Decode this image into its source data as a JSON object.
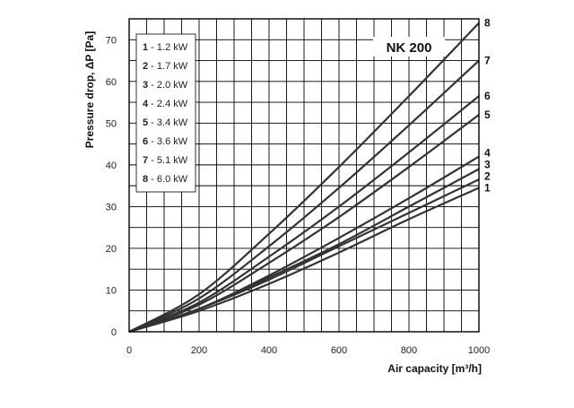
{
  "chart_data": {
    "type": "line",
    "model": "NK 200",
    "xlabel": "Air capacity [m³/h]",
    "ylabel": "Pressure drop, ΔP [Pa]",
    "xlim": [
      0,
      1000
    ],
    "ylim": [
      0,
      75
    ],
    "x_ticks": [
      0,
      200,
      400,
      600,
      800,
      1000
    ],
    "y_ticks": [
      0,
      10,
      20,
      30,
      40,
      50,
      60,
      70
    ],
    "grid": true,
    "legend_position": "top-left",
    "legend": [
      {
        "num": "1",
        "text": " - 1.2 kW"
      },
      {
        "num": "2",
        "text": " - 1.7 kW"
      },
      {
        "num": "3",
        "text": " - 2.0 kW"
      },
      {
        "num": "4",
        "text": " - 2.4 kW"
      },
      {
        "num": "5",
        "text": " - 3.4 kW"
      },
      {
        "num": "6",
        "text": " - 3.6 kW"
      },
      {
        "num": "7",
        "text": " - 5.1 kW"
      },
      {
        "num": "8",
        "text": " - 6.0 kW"
      }
    ],
    "series": [
      {
        "name": "1",
        "x": [
          0,
          200,
          400,
          600,
          800,
          1000
        ],
        "y": [
          0,
          5,
          11.5,
          19,
          27,
          34.5
        ]
      },
      {
        "name": "2",
        "x": [
          0,
          200,
          400,
          600,
          800,
          1000
        ],
        "y": [
          0,
          5.5,
          12.5,
          20.5,
          28.5,
          36.5
        ]
      },
      {
        "name": "3",
        "x": [
          0,
          200,
          400,
          600,
          800,
          1000
        ],
        "y": [
          0,
          5.5,
          13,
          21,
          30,
          39
        ]
      },
      {
        "name": "4",
        "x": [
          0,
          200,
          400,
          600,
          800,
          1000
        ],
        "y": [
          0,
          5.5,
          13.5,
          22.5,
          32,
          42
        ]
      },
      {
        "name": "5",
        "x": [
          0,
          200,
          400,
          600,
          800,
          1000
        ],
        "y": [
          0,
          6.5,
          16.5,
          27.5,
          39.5,
          52
        ]
      },
      {
        "name": "6",
        "x": [
          0,
          200,
          400,
          600,
          800,
          1000
        ],
        "y": [
          0,
          7,
          18,
          30,
          43,
          56.5
        ]
      },
      {
        "name": "7",
        "x": [
          0,
          200,
          400,
          600,
          800,
          1000
        ],
        "y": [
          0,
          8,
          20.5,
          34.5,
          49.5,
          65
        ]
      },
      {
        "name": "8",
        "x": [
          0,
          200,
          400,
          600,
          800,
          1000
        ],
        "y": [
          0,
          9,
          23.5,
          39.5,
          56.5,
          74
        ]
      }
    ],
    "colors": {
      "line": "#333333",
      "grid": "#000000",
      "text": "#111111"
    }
  }
}
